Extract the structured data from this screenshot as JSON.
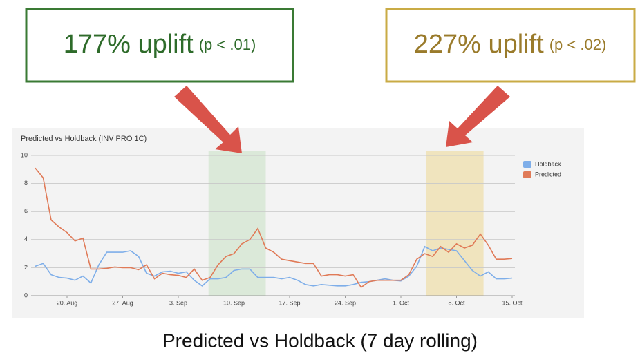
{
  "chart_data": {
    "type": "line",
    "title": "Predicted vs Holdback (INV PRO 1C)",
    "caption": "Predicted vs Holdback (7 day rolling)",
    "callouts": [
      {
        "text": "177% uplift",
        "note": "(p < .01)",
        "color": "#2e6b2a"
      },
      {
        "text": "227% uplift",
        "note": "(p < .02)",
        "color": "#9a7b2b"
      }
    ],
    "bands": [
      {
        "start": 21.8,
        "end": 29,
        "color": "#d8e8d6"
      },
      {
        "start": 49.2,
        "end": 56.4,
        "color": "#f0e2b8"
      }
    ],
    "categories": [
      null,
      null,
      null,
      null,
      "20. Aug",
      null,
      null,
      null,
      null,
      null,
      null,
      "27. Aug",
      null,
      null,
      null,
      null,
      null,
      null,
      "3. Sep",
      null,
      null,
      null,
      null,
      null,
      null,
      "10. Sep",
      null,
      null,
      null,
      null,
      null,
      null,
      "17. Sep",
      null,
      null,
      null,
      null,
      null,
      null,
      "24. Sep",
      null,
      null,
      null,
      null,
      null,
      null,
      "1. Oct",
      null,
      null,
      null,
      null,
      null,
      null,
      "8. Oct",
      null,
      null,
      null,
      null,
      null,
      null,
      "15. Oct"
    ],
    "series": [
      {
        "name": "Holdback",
        "color": "#7eaee9",
        "values": [
          2.1,
          2.3,
          1.5,
          1.3,
          1.25,
          1.1,
          1.4,
          0.9,
          2.2,
          3.1,
          3.1,
          3.1,
          3.2,
          2.8,
          1.6,
          1.4,
          1.7,
          1.75,
          1.6,
          1.7,
          1.1,
          0.7,
          1.2,
          1.2,
          1.3,
          1.8,
          1.9,
          1.9,
          1.3,
          1.3,
          1.3,
          1.2,
          1.3,
          1.1,
          0.8,
          0.7,
          0.8,
          0.75,
          0.7,
          0.7,
          0.8,
          0.95,
          1.0,
          1.1,
          1.2,
          1.1,
          1.05,
          1.4,
          2.1,
          3.5,
          3.2,
          3.4,
          3.3,
          3.2,
          2.5,
          1.8,
          1.4,
          1.7,
          1.2,
          1.2,
          1.25
        ]
      },
      {
        "name": "Predicted",
        "color": "#e07a57",
        "values": [
          9.1,
          8.4,
          5.4,
          4.9,
          4.5,
          3.9,
          4.1,
          1.9,
          1.9,
          1.95,
          2.05,
          2.0,
          2.0,
          1.85,
          2.2,
          1.2,
          1.6,
          1.5,
          1.45,
          1.3,
          1.9,
          1.1,
          1.3,
          2.2,
          2.8,
          3.0,
          3.7,
          4.0,
          4.8,
          3.4,
          3.1,
          2.6,
          2.5,
          2.4,
          2.3,
          2.3,
          1.4,
          1.5,
          1.5,
          1.4,
          1.5,
          0.6,
          1.0,
          1.1,
          1.1,
          1.1,
          1.1,
          1.5,
          2.6,
          3.0,
          2.8,
          3.5,
          3.1,
          3.7,
          3.4,
          3.6,
          4.4,
          3.6,
          2.6,
          2.6,
          2.65
        ]
      }
    ],
    "ylim": [
      0,
      10
    ],
    "yticks": [
      0,
      2,
      4,
      6,
      8,
      10
    ],
    "grid": true,
    "legend": "top-right"
  }
}
